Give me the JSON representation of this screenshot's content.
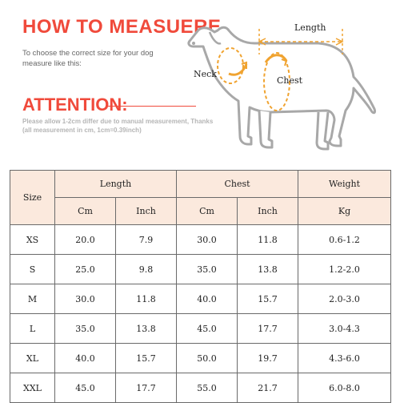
{
  "header": {
    "title": "HOW TO MEASUERE",
    "subtitle": "To choose the correct size for your dog measure like this:"
  },
  "attention": {
    "title": "ATTENTION:",
    "text": "Please allow 1-2cm differ due to manual measurement, Thanks (all measurement in cm, 1cm=0.39inch)"
  },
  "diagram": {
    "length_label": "Length",
    "neck_label": "Neck",
    "chest_label": "Chest",
    "arrow_color": "#f0a330",
    "dog_color": "#a8a8a8"
  },
  "table": {
    "size_header": "Size",
    "groups": [
      "Length",
      "Chest",
      "Weight"
    ],
    "units": [
      "Cm",
      "Inch",
      "Cm",
      "Inch",
      "Kg"
    ],
    "header_bg": "#fbe9dd",
    "rows": [
      {
        "size": "XS",
        "length_cm": "20.0",
        "length_inch": "7.9",
        "chest_cm": "30.0",
        "chest_inch": "11.8",
        "weight_kg": "0.6-1.2"
      },
      {
        "size": "S",
        "length_cm": "25.0",
        "length_inch": "9.8",
        "chest_cm": "35.0",
        "chest_inch": "13.8",
        "weight_kg": "1.2-2.0"
      },
      {
        "size": "M",
        "length_cm": "30.0",
        "length_inch": "11.8",
        "chest_cm": "40.0",
        "chest_inch": "15.7",
        "weight_kg": "2.0-3.0"
      },
      {
        "size": "L",
        "length_cm": "35.0",
        "length_inch": "13.8",
        "chest_cm": "45.0",
        "chest_inch": "17.7",
        "weight_kg": "3.0-4.3"
      },
      {
        "size": "XL",
        "length_cm": "40.0",
        "length_inch": "15.7",
        "chest_cm": "50.0",
        "chest_inch": "19.7",
        "weight_kg": "4.3-6.0"
      },
      {
        "size": "XXL",
        "length_cm": "45.0",
        "length_inch": "17.7",
        "chest_cm": "55.0",
        "chest_inch": "21.7",
        "weight_kg": "6.0-8.0"
      }
    ]
  }
}
